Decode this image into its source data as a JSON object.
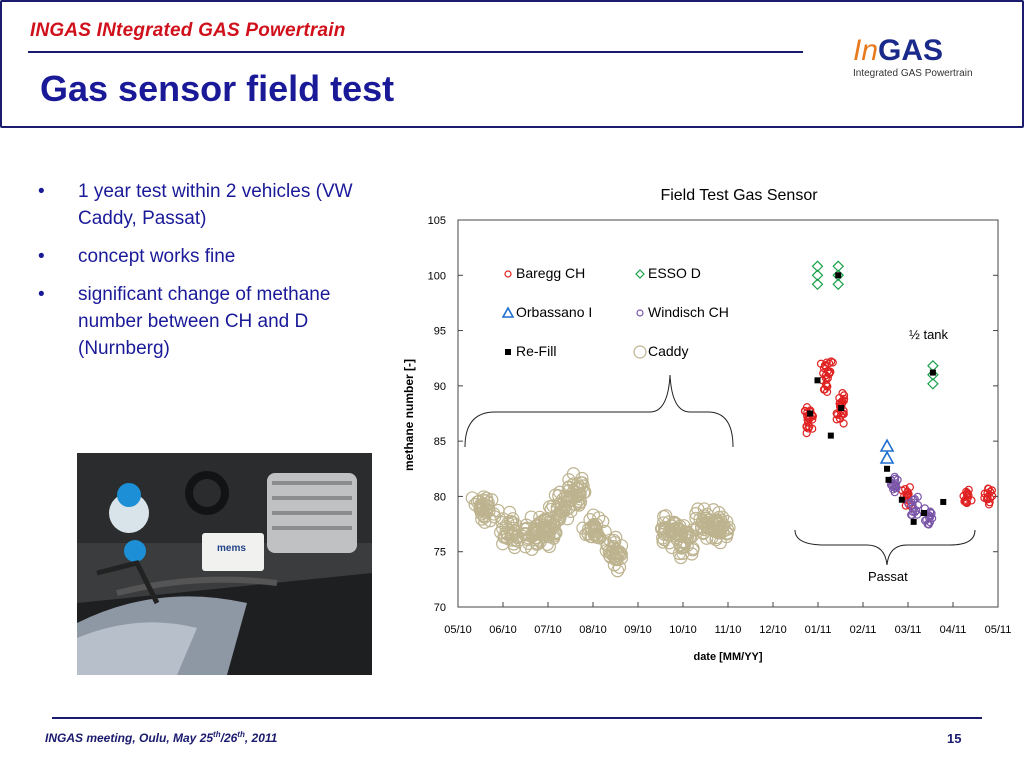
{
  "header": {
    "project": "INGAS INtegrated GAS Powertrain",
    "title": "Gas sensor field test"
  },
  "logo": {
    "in": "In",
    "gas": "GAS",
    "subtitle": "Integrated GAS Powertrain"
  },
  "bullets": [
    "1 year test within 2 vehicles (VW Caddy, Passat)",
    "concept works fine",
    "significant change of methane number between CH and D (Nurnberg)"
  ],
  "bullet_marker": "•",
  "photo": {
    "label": "mems"
  },
  "footer": {
    "meeting_pre": "INGAS meeting, Oulu, May  25",
    "sup1": "th",
    "slash": "/26",
    "sup2": "th",
    "post": ", 2011",
    "page": "15"
  },
  "chart_data": {
    "type": "scatter",
    "title": "Field Test Gas Sensor",
    "xlabel": "date [MM/YY]",
    "ylabel": "methane number [-]",
    "x_tick_labels": [
      "05/10",
      "06/10",
      "07/10",
      "08/10",
      "09/10",
      "10/10",
      "11/10",
      "12/10",
      "01/11",
      "02/11",
      "03/11",
      "04/11",
      "05/11"
    ],
    "xlim": [
      "2010-05",
      "2011-05"
    ],
    "ylim": [
      70,
      105
    ],
    "y_ticks": [
      70,
      75,
      80,
      85,
      90,
      95,
      100,
      105
    ],
    "grid": false,
    "legend": [
      "Baregg CH",
      "ESSO D",
      "Orbassano I",
      "Windisch CH",
      "Re-Fill",
      "Caddy"
    ],
    "legend_position": "top-left",
    "annotations": [
      "½ tank",
      "Passat"
    ],
    "colors": {
      "Baregg CH": "#e02020",
      "ESSO D": "#19a14a",
      "Orbassano I": "#1f6fd0",
      "Windisch CH": "#7a55a8",
      "Re-Fill": "#000000",
      "Caddy": "#bdb38f"
    },
    "series": [
      {
        "name": "Caddy",
        "marker": "circle",
        "x": [
          "2010-05-18",
          "2010-06-05",
          "2010-06-20",
          "2010-07-01",
          "2010-07-10",
          "2010-07-20",
          "2010-08-01",
          "2010-08-15",
          "2010-09-20",
          "2010-10-01",
          "2010-10-15",
          "2010-10-25"
        ],
        "values": [
          79,
          77,
          76.5,
          77,
          79,
          80.5,
          77,
          75,
          77,
          76,
          77.5,
          77.5
        ]
      },
      {
        "name": "Baregg CH",
        "marker": "circle",
        "x": [
          "2010-12-25",
          "2011-01-05",
          "2011-01-15",
          "2011-03-01",
          "2011-04-10",
          "2011-04-25"
        ],
        "values": [
          87,
          91,
          88,
          80,
          80,
          80
        ]
      },
      {
        "name": "ESSO D",
        "marker": "diamond",
        "x": [
          "2010-12-30",
          "2011-01-13",
          "2011-03-18"
        ],
        "values": [
          100,
          100,
          91
        ]
      },
      {
        "name": "Orbassano I",
        "marker": "triangle",
        "x": [
          "2011-02-15"
        ],
        "values": [
          84
        ]
      },
      {
        "name": "Windisch CH",
        "marker": "circle",
        "x": [
          "2011-02-20",
          "2011-03-05",
          "2011-03-15"
        ],
        "values": [
          81,
          79,
          78
        ]
      },
      {
        "name": "Re-Fill",
        "marker": "square",
        "x": [
          "2010-12-25",
          "2010-12-30",
          "2011-01-08",
          "2011-01-13",
          "2011-01-15",
          "2011-02-15",
          "2011-02-16",
          "2011-02-25",
          "2011-03-05",
          "2011-03-12",
          "2011-03-18",
          "2011-03-25"
        ],
        "values": [
          87.5,
          90.5,
          85.5,
          100,
          88,
          82.5,
          81.5,
          79.7,
          77.7,
          78.5,
          91.2,
          79.5
        ]
      }
    ]
  }
}
